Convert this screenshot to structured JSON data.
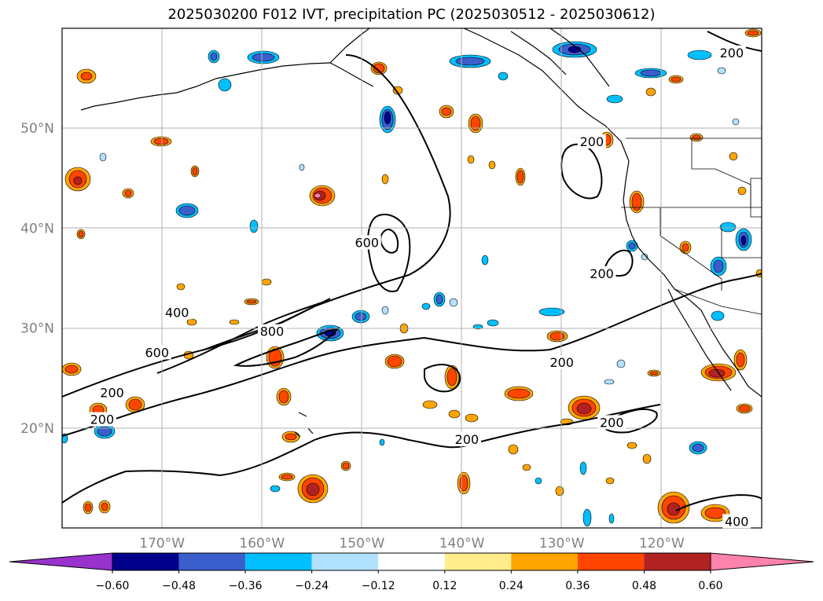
{
  "title": "2025030200 F012 IVT, precipitation PC (2025030512 - 2025030612)",
  "chart_data": {
    "type": "contour",
    "map": {
      "lon_range": [
        -180,
        -110
      ],
      "lat_range": [
        10,
        60
      ],
      "lat_ticks": [
        {
          "value": 20,
          "label": "20°N"
        },
        {
          "value": 30,
          "label": "30°N"
        },
        {
          "value": 40,
          "label": "40°N"
        },
        {
          "value": 50,
          "label": "50°N"
        }
      ],
      "lon_ticks": [
        {
          "value": -170,
          "label": "170°W"
        },
        {
          "value": -160,
          "label": "160°W"
        },
        {
          "value": -150,
          "label": "150°W"
        },
        {
          "value": -140,
          "label": "140°W"
        },
        {
          "value": -130,
          "label": "130°W"
        },
        {
          "value": -120,
          "label": "120°W"
        }
      ],
      "grid": true
    },
    "ivt_contours": [
      {
        "level": 200,
        "label": "200",
        "lon": -175,
        "lat": 23.5
      },
      {
        "level": 200,
        "label": "200",
        "lon": -176,
        "lat": 20.8
      },
      {
        "level": 400,
        "label": "400",
        "lon": -168.5,
        "lat": 31.5
      },
      {
        "level": 600,
        "label": "600",
        "lon": -170.5,
        "lat": 27.5
      },
      {
        "level": 800,
        "label": "800",
        "lon": -159,
        "lat": 29.6
      },
      {
        "level": 600,
        "label": "600",
        "lon": -149.5,
        "lat": 38.5
      },
      {
        "level": 200,
        "label": "200",
        "lon": -127,
        "lat": 48.6
      },
      {
        "level": 200,
        "label": "200",
        "lon": -126,
        "lat": 35.4
      },
      {
        "level": 200,
        "label": "200",
        "lon": -130,
        "lat": 26.5
      },
      {
        "level": 200,
        "label": "200",
        "lon": -139.5,
        "lat": 18.8
      },
      {
        "level": 200,
        "label": "200",
        "lon": -125,
        "lat": 20.5
      },
      {
        "level": 200,
        "label": "200",
        "lon": -113,
        "lat": 57.5
      },
      {
        "level": 400,
        "label": "400",
        "lon": -112.5,
        "lat": 10.6
      }
    ],
    "colorbar": {
      "levels": [
        -0.6,
        -0.48,
        -0.36,
        -0.24,
        -0.12,
        0.12,
        0.24,
        0.36,
        0.48,
        0.6
      ],
      "tick_labels": [
        "−0.60",
        "−0.48",
        "−0.36",
        "−0.24",
        "−0.12",
        "0.12",
        "0.24",
        "0.36",
        "0.48",
        "0.60"
      ],
      "colors": [
        "#9932cc",
        "#00008b",
        "#3a5fcd",
        "#00bfff",
        "#b0e2ff",
        "#ffffff",
        "#ffec8b",
        "#ffa500",
        "#ff4500",
        "#b22222",
        "#ff82ab"
      ],
      "extend": "both"
    }
  }
}
